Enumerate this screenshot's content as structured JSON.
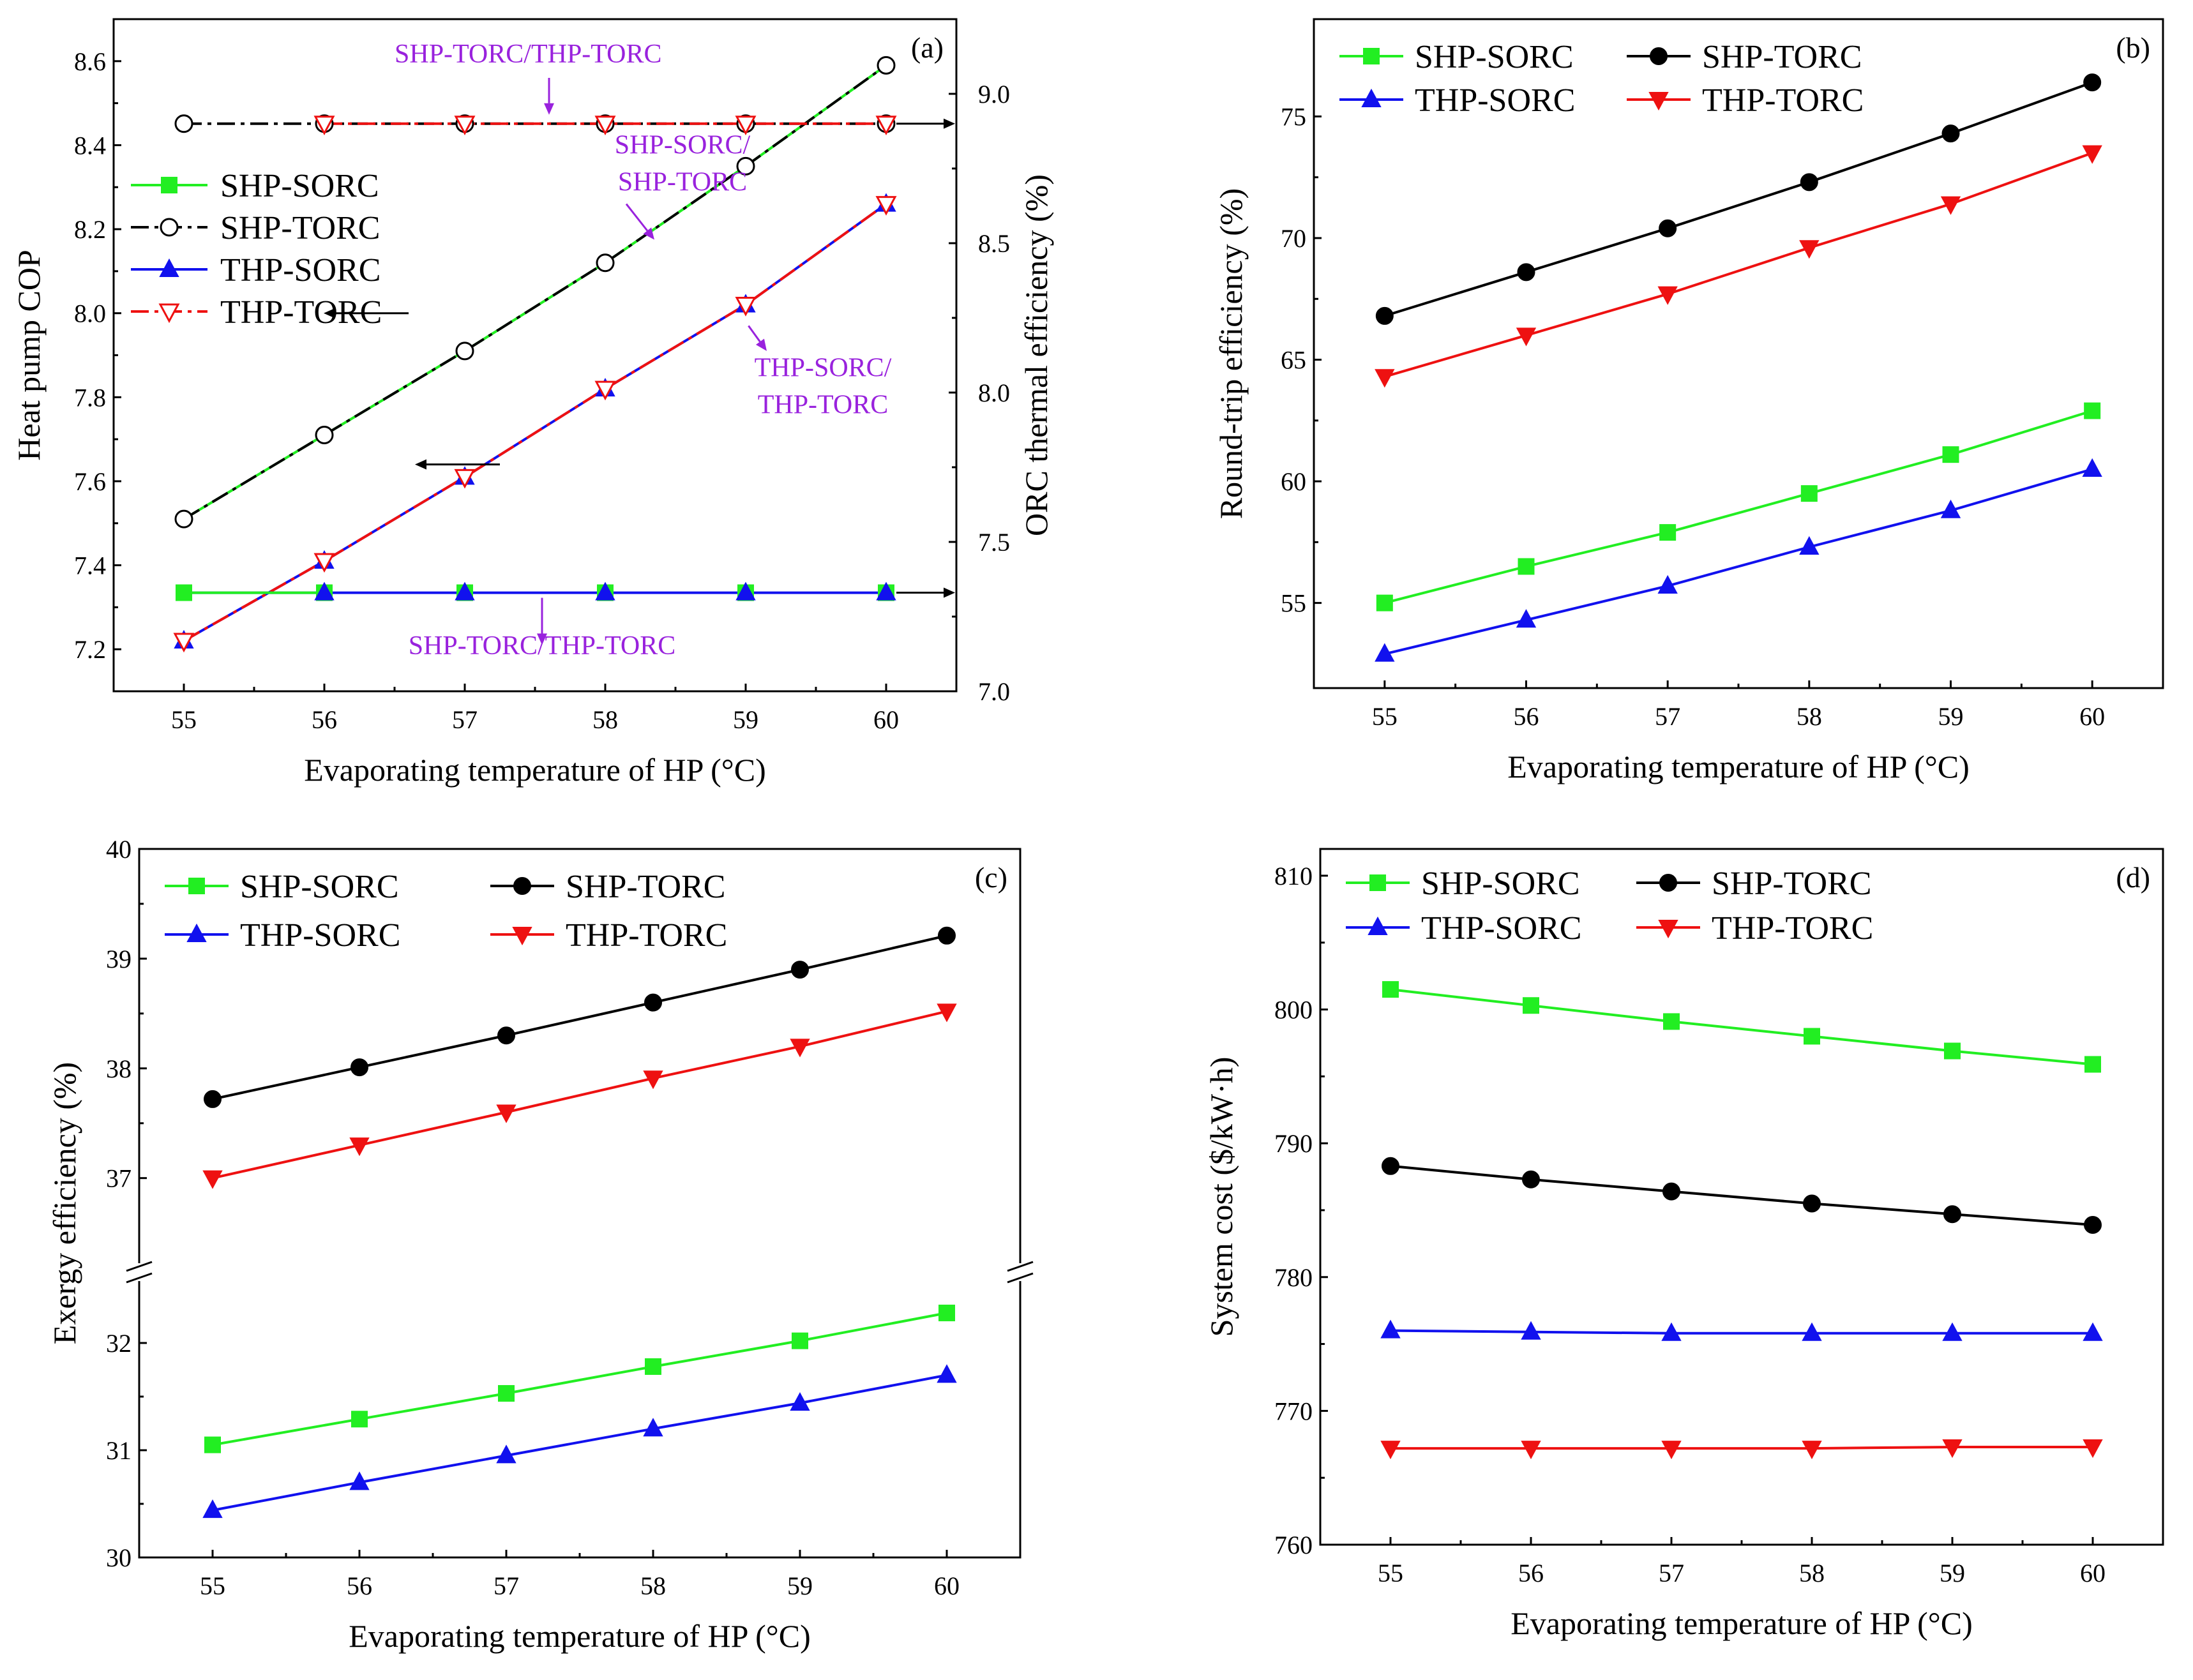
{
  "colors": {
    "SHP-SORC": "#22ee22",
    "SHP-TORC": "#000000",
    "THP-SORC": "#1111ee",
    "THP-TORC": "#ee1111",
    "annotation": "#9922dd"
  },
  "chart_data": [
    {
      "id": "a",
      "type": "line",
      "panel_label": "(a)",
      "xlabel": "Evaporating temperature of HP (°C)",
      "ylabel": "Heat pump COP",
      "y2label": "ORC thermal efficiency (%)",
      "x": [
        55,
        56,
        57,
        58,
        59,
        60
      ],
      "xlim": [
        54.5,
        60.5
      ],
      "xticks": [
        "55",
        "56",
        "57",
        "58",
        "59",
        "60"
      ],
      "ylim": [
        7.1,
        8.7
      ],
      "yticks": [
        "7.2",
        "7.4",
        "7.6",
        "7.8",
        "8.0",
        "8.2",
        "8.4",
        "8.6"
      ],
      "y2lim": [
        7.0,
        9.25
      ],
      "y2ticks": [
        "7.0",
        "7.5",
        "8.0",
        "8.5",
        "9.0"
      ],
      "legend_position": "center-left",
      "series": [
        {
          "name": "SHP-SORC",
          "role": "cop",
          "axis": "left",
          "marker": "square",
          "line": "dashdot",
          "values": [
            7.51,
            7.71,
            7.91,
            8.12,
            8.35,
            8.59
          ]
        },
        {
          "name": "SHP-TORC",
          "role": "cop",
          "axis": "left",
          "marker": "circle-open",
          "line": "dashdot",
          "values": [
            7.51,
            7.71,
            7.91,
            8.12,
            8.35,
            8.59
          ]
        },
        {
          "name": "THP-SORC",
          "role": "cop",
          "axis": "left",
          "marker": "triangle-up",
          "line": "solid",
          "values": [
            7.22,
            7.41,
            7.61,
            7.82,
            8.02,
            8.26
          ]
        },
        {
          "name": "THP-TORC",
          "role": "cop",
          "axis": "left",
          "marker": "triangle-down-open",
          "line": "dashdot",
          "values": [
            7.22,
            7.41,
            7.61,
            7.82,
            8.02,
            8.26
          ]
        },
        {
          "name": "SHP-SORC",
          "role": "eff",
          "axis": "right",
          "marker": "square",
          "line": "solid",
          "values": [
            7.33,
            7.33,
            7.33,
            7.33,
            7.33,
            7.33
          ]
        },
        {
          "name": "THP-SORC",
          "role": "eff",
          "axis": "right",
          "marker": "triangle-up",
          "line": "solid",
          "values": [
            7.33,
            7.33,
            7.33,
            7.33,
            7.33,
            7.33
          ]
        },
        {
          "name": "SHP-TORC",
          "role": "eff",
          "axis": "right",
          "marker": "circle-open",
          "line": "dashdot",
          "values": [
            8.9,
            8.9,
            8.9,
            8.9,
            8.9,
            8.9
          ]
        },
        {
          "name": "THP-TORC",
          "role": "eff",
          "axis": "right",
          "marker": "triangle-down-open",
          "line": "dashdot",
          "values": [
            8.9,
            8.9,
            8.9,
            8.9,
            8.9,
            8.9
          ]
        }
      ],
      "annotations": [
        {
          "lines": [
            "SHP-TORC/THP-TORC"
          ],
          "anchor": "upper"
        },
        {
          "lines": [
            "SHP-SORC/",
            "SHP-TORC"
          ],
          "anchor": "middle"
        },
        {
          "lines": [
            "THP-SORC/",
            "THP-TORC"
          ],
          "anchor": "right"
        },
        {
          "lines": [
            "SHP-TORC/THP-TORC"
          ],
          "anchor": "lower"
        }
      ]
    },
    {
      "id": "b",
      "type": "line",
      "panel_label": "(b)",
      "xlabel": "Evaporating temperature of HP (°C)",
      "ylabel": "Round-trip efficiency (%)",
      "x": [
        55,
        56,
        57,
        58,
        59,
        60
      ],
      "xlim": [
        54.5,
        60.5
      ],
      "xticks": [
        "55",
        "56",
        "57",
        "58",
        "59",
        "60"
      ],
      "ylim": [
        51.5,
        79
      ],
      "yticks": [
        "55",
        "60",
        "65",
        "70",
        "75"
      ],
      "legend_position": "top-left",
      "series": [
        {
          "name": "SHP-SORC",
          "marker": "square",
          "values": [
            55.0,
            56.5,
            57.9,
            59.5,
            61.1,
            62.9
          ]
        },
        {
          "name": "SHP-TORC",
          "marker": "circle",
          "values": [
            66.8,
            68.6,
            70.4,
            72.3,
            74.3,
            76.4
          ]
        },
        {
          "name": "THP-SORC",
          "marker": "triangle-up",
          "values": [
            52.9,
            54.3,
            55.7,
            57.3,
            58.8,
            60.5
          ]
        },
        {
          "name": "THP-TORC",
          "marker": "triangle-down",
          "values": [
            64.3,
            66.0,
            67.7,
            69.6,
            71.4,
            73.5
          ]
        }
      ]
    },
    {
      "id": "c",
      "type": "line",
      "panel_label": "(c)",
      "xlabel": "Evaporating temperature of HP (°C)",
      "ylabel": "Exergy efficiency (%)",
      "x": [
        55,
        56,
        57,
        58,
        59,
        60
      ],
      "xlim": [
        54.5,
        60.5
      ],
      "xticks": [
        "55",
        "56",
        "57",
        "58",
        "59",
        "60"
      ],
      "axis_break": true,
      "ylim_upper": [
        36.3,
        40
      ],
      "yticks_upper": [
        "37",
        "38",
        "39",
        "40"
      ],
      "ylim_lower": [
        30,
        32.5
      ],
      "yticks_lower": [
        "30",
        "31",
        "32"
      ],
      "legend_position": "top-left",
      "series": [
        {
          "name": "SHP-SORC",
          "marker": "square",
          "values": [
            31.05,
            31.29,
            31.53,
            31.78,
            32.02,
            32.28
          ]
        },
        {
          "name": "SHP-TORC",
          "marker": "circle",
          "values": [
            37.72,
            38.01,
            38.3,
            38.6,
            38.9,
            39.21
          ]
        },
        {
          "name": "THP-SORC",
          "marker": "triangle-up",
          "values": [
            30.44,
            30.7,
            30.95,
            31.2,
            31.44,
            31.7
          ]
        },
        {
          "name": "THP-TORC",
          "marker": "triangle-down",
          "values": [
            37.0,
            37.3,
            37.6,
            37.91,
            38.2,
            38.52
          ]
        }
      ]
    },
    {
      "id": "d",
      "type": "line",
      "panel_label": "(d)",
      "xlabel": "Evaporating temperature of HP (°C)",
      "ylabel": "System cost ($/kW·h)",
      "x": [
        55,
        56,
        57,
        58,
        59,
        60
      ],
      "xlim": [
        54.5,
        60.5
      ],
      "xticks": [
        "55",
        "56",
        "57",
        "58",
        "59",
        "60"
      ],
      "ylim": [
        760,
        812
      ],
      "yticks": [
        "760",
        "770",
        "780",
        "790",
        "800",
        "810"
      ],
      "legend_position": "top-left",
      "series": [
        {
          "name": "SHP-SORC",
          "marker": "square",
          "values": [
            801.5,
            800.3,
            799.1,
            798.0,
            796.9,
            795.9
          ]
        },
        {
          "name": "SHP-TORC",
          "marker": "circle",
          "values": [
            788.3,
            787.3,
            786.4,
            785.5,
            784.7,
            783.9
          ]
        },
        {
          "name": "THP-SORC",
          "marker": "triangle-up",
          "values": [
            776.0,
            775.9,
            775.8,
            775.8,
            775.8,
            775.8
          ]
        },
        {
          "name": "THP-TORC",
          "marker": "triangle-down",
          "values": [
            767.2,
            767.2,
            767.2,
            767.2,
            767.3,
            767.3
          ]
        }
      ]
    }
  ]
}
